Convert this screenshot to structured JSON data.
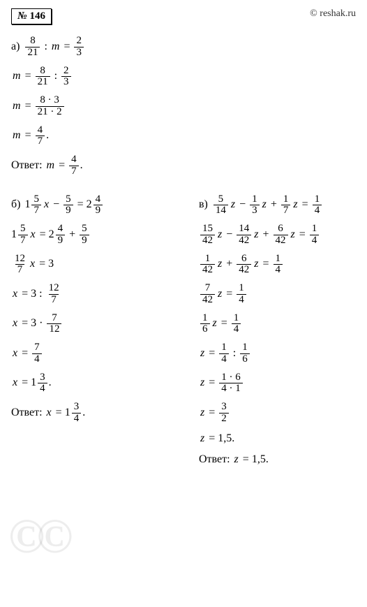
{
  "header": {
    "badge_prefix": "№",
    "badge_num": "146",
    "site": "© reshak.ru"
  },
  "a": {
    "label": "а)",
    "l1_f1n": "8",
    "l1_f1d": "21",
    "l1_colon": ":",
    "l1_var": "m",
    "l1_eq": "=",
    "l1_f2n": "2",
    "l1_f2d": "3",
    "l2_var": "m",
    "l2_eq": "=",
    "l2_f1n": "8",
    "l2_f1d": "21",
    "l2_colon": ":",
    "l2_f2n": "2",
    "l2_f2d": "3",
    "l3_var": "m",
    "l3_eq": "=",
    "l3_fn": "8 · 3",
    "l3_fd": "21 · 2",
    "l4_var": "m",
    "l4_eq": "=",
    "l4_fn": "4",
    "l4_fd": "7",
    "l4_dot": ".",
    "ans_label": "Ответ:",
    "ans_var": "m",
    "ans_eq": "=",
    "ans_fn": "4",
    "ans_fd": "7",
    "ans_dot": "."
  },
  "b": {
    "label": "б)",
    "l1_w": "1",
    "l1_f1n": "5",
    "l1_f1d": "7",
    "l1_v": "x",
    "l1_m": "−",
    "l1_f2n": "5",
    "l1_f2d": "9",
    "l1_eq": "=",
    "l1_w2": "2",
    "l1_f3n": "4",
    "l1_f3d": "9",
    "l2_w": "1",
    "l2_f1n": "5",
    "l2_f1d": "7",
    "l2_v": "x",
    "l2_eq": "=",
    "l2_w2": "2",
    "l2_f2n": "4",
    "l2_f2d": "9",
    "l2_p": "+",
    "l2_f3n": "5",
    "l2_f3d": "9",
    "l3_fn": "12",
    "l3_fd": "7",
    "l3_v": "x",
    "l3_eq": "=",
    "l3_r": "3",
    "l4_v": "x",
    "l4_eq": "=",
    "l4_l": "3",
    "l4_colon": ":",
    "l4_fn": "12",
    "l4_fd": "7",
    "l5_v": "x",
    "l5_eq": "=",
    "l5_l": "3",
    "l5_dot": "·",
    "l5_fn": "7",
    "l5_fd": "12",
    "l6_v": "x",
    "l6_eq": "=",
    "l6_fn": "7",
    "l6_fd": "4",
    "l7_v": "x",
    "l7_eq": "=",
    "l7_w": "1",
    "l7_fn": "3",
    "l7_fd": "4",
    "l7_dot": ".",
    "ans_label": "Ответ:",
    "ans_v": "x",
    "ans_eq": "=",
    "ans_w": "1",
    "ans_fn": "3",
    "ans_fd": "4",
    "ans_dot": "."
  },
  "c": {
    "label": "в)",
    "l1_f1n": "5",
    "l1_f1d": "14",
    "l1_v": "z",
    "l1_m": "−",
    "l1_f2n": "1",
    "l1_f2d": "3",
    "l1_v2": "z",
    "l1_p": "+",
    "l1_f3n": "1",
    "l1_f3d": "7",
    "l1_v3": "z",
    "l1_eq": "=",
    "l1_f4n": "1",
    "l1_f4d": "4",
    "l2_f1n": "15",
    "l2_f1d": "42",
    "l2_v": "z",
    "l2_m": "−",
    "l2_f2n": "14",
    "l2_f2d": "42",
    "l2_v2": "z",
    "l2_p": "+",
    "l2_f3n": "6",
    "l2_f3d": "42",
    "l2_v3": "z",
    "l2_eq": "=",
    "l2_f4n": "1",
    "l2_f4d": "4",
    "l3_f1n": "1",
    "l3_f1d": "42",
    "l3_v": "z",
    "l3_p": "+",
    "l3_f2n": "6",
    "l3_f2d": "42",
    "l3_v2": "z",
    "l3_eq": "=",
    "l3_f3n": "1",
    "l3_f3d": "4",
    "l4_f1n": "7",
    "l4_f1d": "42",
    "l4_v": "z",
    "l4_eq": "=",
    "l4_f2n": "1",
    "l4_f2d": "4",
    "l5_f1n": "1",
    "l5_f1d": "6",
    "l5_v": "z",
    "l5_eq": "=",
    "l5_f2n": "1",
    "l5_f2d": "4",
    "l6_v": "z",
    "l6_eq": "=",
    "l6_f1n": "1",
    "l6_f1d": "4",
    "l6_colon": ":",
    "l6_f2n": "1",
    "l6_f2d": "6",
    "l7_v": "z",
    "l7_eq": "=",
    "l7_fn": "1 · 6",
    "l7_fd": "4 · 1",
    "l8_v": "z",
    "l8_eq": "=",
    "l8_fn": "3",
    "l8_fd": "2",
    "l9_v": "z",
    "l9_eq": "=",
    "l9_r": "1,5",
    "l9_dot": ".",
    "ans_label": "Ответ:",
    "ans_v": "z",
    "ans_eq": "=",
    "ans_r": "1,5",
    "ans_dot": "."
  },
  "colors": {
    "text": "#000000",
    "bg": "#ffffff",
    "watermark": "rgba(0,0,0,0.07)"
  }
}
